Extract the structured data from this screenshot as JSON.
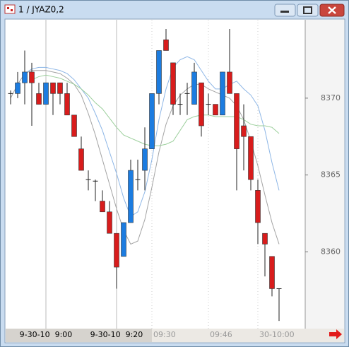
{
  "window": {
    "title": "1 / JYAZ0,2"
  },
  "chart_data": {
    "type": "candlestick",
    "categories": [
      null,
      null,
      null,
      null,
      null,
      "9-30-10  9:00",
      null,
      null,
      null,
      null,
      null,
      null,
      null,
      null,
      null,
      "9-30-10  9:20",
      null,
      null,
      null,
      null,
      "09:30",
      null,
      null,
      null,
      null,
      null,
      null,
      null,
      "09:46",
      null,
      null,
      null,
      null,
      null,
      null,
      "30-10:00",
      null,
      null,
      null
    ],
    "open": [
      8370.3,
      8370.3,
      8371.0,
      8371.7,
      8370.3,
      8369.6,
      8371.0,
      8371.0,
      8370.3,
      8368.9,
      8366.7,
      8364.7,
      8364.6,
      8363.3,
      8362.6,
      8361.2,
      8359.7,
      8361.9,
      8364.7,
      8365.3,
      8366.7,
      8370.3,
      8373.8,
      8372.3,
      8369.6,
      8370.3,
      8369.6,
      8371.0,
      8369.6,
      8369.6,
      8368.9,
      8371.7,
      8370.3,
      8368.2,
      8367.5,
      8364.0,
      8361.2,
      8359.7,
      8357.6
    ],
    "close": [
      8370.3,
      8371.0,
      8371.7,
      8371.0,
      8369.6,
      8371.0,
      8370.3,
      8370.3,
      8368.9,
      8367.5,
      8365.3,
      8364.7,
      8364.6,
      8362.6,
      8361.2,
      8359.0,
      8361.9,
      8365.3,
      8364.7,
      8366.7,
      8370.3,
      8373.1,
      8373.1,
      8369.6,
      8369.6,
      8370.3,
      8371.7,
      8368.2,
      8369.6,
      8368.9,
      8371.7,
      8370.3,
      8366.7,
      8367.5,
      8364.7,
      8361.9,
      8360.5,
      8357.6,
      8357.6
    ],
    "high": [
      8370.5,
      8371.7,
      8373.1,
      8372.3,
      8371.0,
      8371.0,
      8371.0,
      8371.0,
      8371.0,
      8368.9,
      8367.5,
      8365.3,
      8364.7,
      8364.0,
      8363.3,
      8361.2,
      8361.9,
      8366.0,
      8366.0,
      8368.1,
      8370.3,
      8373.1,
      8374.5,
      8372.3,
      8370.3,
      8371.0,
      8372.3,
      8371.0,
      8370.3,
      8369.6,
      8371.7,
      8374.5,
      8370.3,
      8369.6,
      8367.5,
      8364.7,
      8361.2,
      8359.7,
      8357.6
    ],
    "low": [
      8369.6,
      8370.0,
      8369.6,
      8368.2,
      8369.6,
      8369.6,
      8368.9,
      8369.6,
      8368.9,
      8367.5,
      8365.3,
      8364.0,
      8363.3,
      8362.6,
      8361.2,
      8357.6,
      8359.7,
      8361.9,
      8364.0,
      8364.0,
      8366.7,
      8369.6,
      8373.1,
      8368.9,
      8368.9,
      8368.9,
      8369.6,
      8367.5,
      8368.9,
      8368.9,
      8368.9,
      8370.3,
      8364.0,
      8365.3,
      8364.0,
      8360.5,
      8358.4,
      8357.1,
      8355.5
    ],
    "up_color": "#1c7ce0",
    "down_color": "#d81c1c",
    "lines": [
      {
        "color": "#8db6e6",
        "values": [
          null,
          null,
          8371.6,
          8371.9,
          8372.0,
          8372.0,
          8371.9,
          8371.8,
          8371.6,
          8371.2,
          8370.6,
          8370.0,
          8369.0,
          8367.9,
          8366.5,
          8365.1,
          8363.5,
          8362.3,
          8362.6,
          8363.9,
          8366.0,
          8368.6,
          8370.6,
          8372.0,
          8372.5,
          8372.7,
          8372.5,
          8371.8,
          8371.1,
          8370.6,
          8370.6,
          8370.9,
          8371.1,
          8370.6,
          8370.2,
          8369.5,
          8367.9,
          8365.8,
          8364.0
        ]
      },
      {
        "color": "#a4a4a4",
        "values": [
          8370.0,
          8370.9,
          8371.6,
          8371.8,
          8371.8,
          8371.8,
          8371.7,
          8371.6,
          8371.3,
          8370.9,
          8370.2,
          8369.0,
          8367.6,
          8366.0,
          8364.4,
          8362.8,
          8361.4,
          8360.5,
          8360.7,
          8362.1,
          8364.2,
          8366.5,
          8368.3,
          8369.5,
          8370.2,
          8370.6,
          8370.9,
          8370.9,
          8370.6,
          8370.4,
          8370.2,
          8370.0,
          8369.5,
          8368.6,
          8367.2,
          8365.6,
          8363.7,
          8361.9,
          8360.5
        ]
      },
      {
        "color": "#9ccf9c",
        "values": [
          null,
          null,
          null,
          8371.2,
          8371.4,
          8371.5,
          8371.4,
          8371.3,
          8371.1,
          8370.9,
          8370.6,
          8370.2,
          8369.7,
          8369.3,
          8368.7,
          8368.1,
          8367.6,
          8367.4,
          8367.2,
          8367.0,
          8366.9,
          8366.9,
          8367.0,
          8367.2,
          8367.9,
          8368.6,
          8368.8,
          8368.9,
          8368.9,
          8368.8,
          8368.8,
          8368.8,
          8368.8,
          8368.6,
          8368.3,
          8368.2,
          8368.2,
          8368.1,
          8367.7
        ]
      }
    ],
    "ylim": [
      8355,
      8375.1
    ],
    "yticks": [
      8360,
      8365,
      8370
    ]
  }
}
